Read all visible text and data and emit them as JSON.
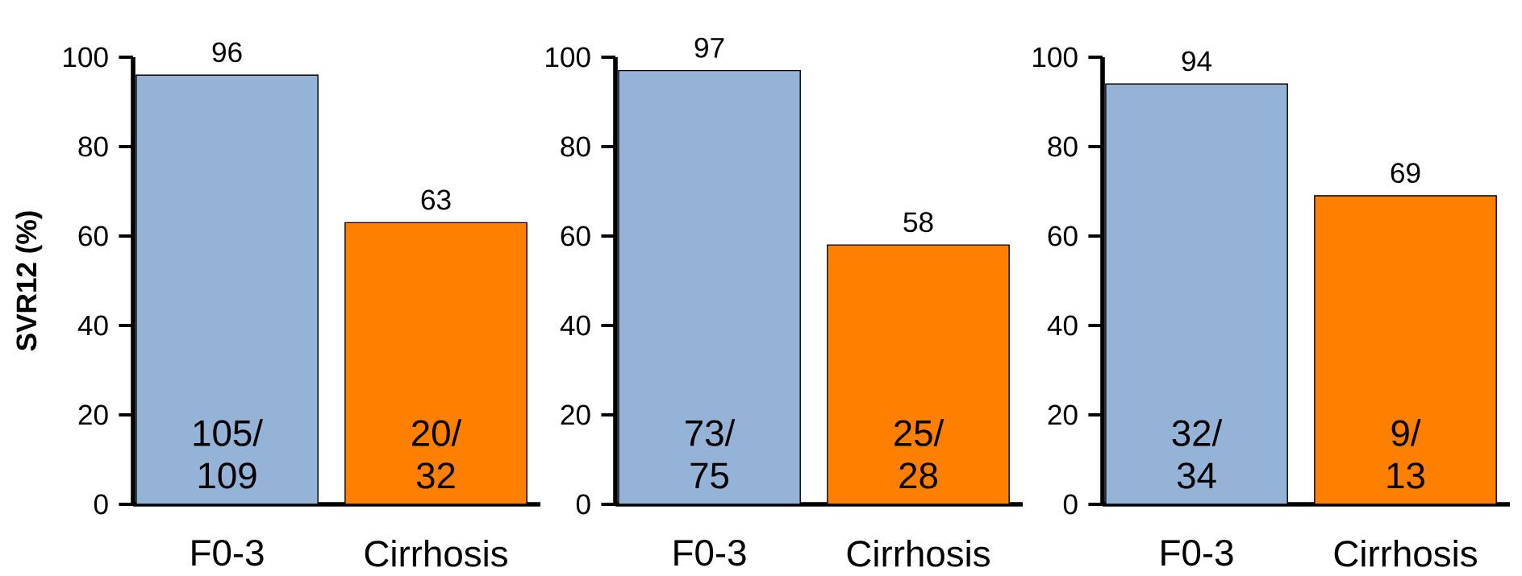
{
  "chart_data": [
    {
      "type": "bar",
      "ylabel": "SVR12 (%)",
      "categories": [
        "F0-3",
        "Cirrhosis"
      ],
      "values": [
        96,
        63
      ],
      "colors": [
        "#95b3d7",
        "#ff8000"
      ],
      "ylim": [
        0,
        100
      ],
      "yticks": [
        0,
        20,
        40,
        60,
        80,
        100
      ],
      "data_labels": true,
      "annotations": [
        {
          "text": "105/ 109",
          "x": "F0-3",
          "y": 0
        },
        {
          "text": "20/ 32",
          "x": "Cirrhosis",
          "y": 0
        }
      ]
    },
    {
      "type": "bar",
      "categories": [
        "F0-3",
        "Cirrhosis"
      ],
      "values": [
        97,
        58
      ],
      "colors": [
        "#95b3d7",
        "#ff8000"
      ],
      "ylim": [
        0,
        100
      ],
      "yticks": [
        0,
        20,
        40,
        60,
        80,
        100
      ],
      "data_labels": true,
      "annotations": [
        {
          "text": "73/ 75",
          "x": "F0-3",
          "y": 0
        },
        {
          "text": "25/ 28",
          "x": "Cirrhosis",
          "y": 0
        }
      ]
    },
    {
      "type": "bar",
      "categories": [
        "F0-3",
        "Cirrhosis"
      ],
      "values": [
        94,
        69
      ],
      "colors": [
        "#95b3d7",
        "#ff8000"
      ],
      "ylim": [
        0,
        100
      ],
      "yticks": [
        0,
        20,
        40,
        60,
        80,
        100
      ],
      "data_labels": true,
      "annotations": [
        {
          "text": "32/ 34",
          "x": "F0-3",
          "y": 0
        },
        {
          "text": "9/ 13",
          "x": "Cirrhosis",
          "y": 0
        }
      ]
    }
  ]
}
